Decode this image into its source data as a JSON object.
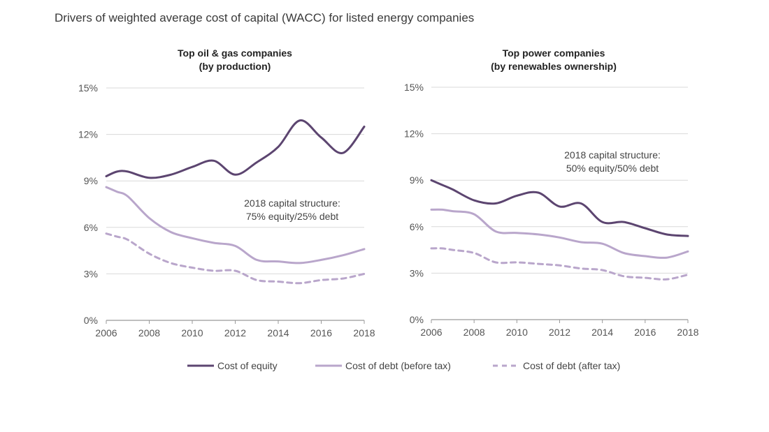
{
  "title": "Drivers of weighted average cost of capital (WACC) for listed energy companies",
  "legend": [
    "Cost of equity",
    "Cost of debt (before tax)",
    "Cost of debt (after tax)"
  ],
  "colors": {
    "equity": "#5c4570",
    "debt_before": "#b9a6cb",
    "debt_after": "#b9a6cb",
    "grid": "#d9d9d9",
    "axis": "#999999"
  },
  "chart_data": [
    {
      "type": "line",
      "title": [
        "Top oil & gas companies",
        "(by production)"
      ],
      "annotation": [
        "2018 capital structure:",
        "75% equity/25% debt"
      ],
      "x": [
        2006,
        2006.5,
        2007,
        2008,
        2009,
        2010,
        2011,
        2012,
        2013,
        2014,
        2015,
        2016,
        2017,
        2018
      ],
      "x_ticks": [
        "2006",
        "2008",
        "2010",
        "2012",
        "2014",
        "2016",
        "2018"
      ],
      "y_ticks": [
        "0%",
        "3%",
        "6%",
        "9%",
        "12%",
        "15%"
      ],
      "ylim": [
        0,
        15
      ],
      "series": [
        {
          "name": "Cost of equity",
          "values": [
            9.3,
            9.6,
            9.6,
            9.2,
            9.4,
            9.9,
            10.3,
            9.4,
            10.2,
            11.2,
            12.9,
            11.8,
            10.8,
            12.5
          ]
        },
        {
          "name": "Cost of debt (before tax)",
          "values": [
            8.6,
            8.3,
            8.0,
            6.6,
            5.7,
            5.3,
            5.0,
            4.8,
            3.9,
            3.8,
            3.7,
            3.9,
            4.2,
            4.6
          ]
        },
        {
          "name": "Cost of debt (after tax)",
          "values": [
            5.6,
            5.4,
            5.2,
            4.3,
            3.7,
            3.4,
            3.2,
            3.2,
            2.6,
            2.5,
            2.4,
            2.6,
            2.7,
            3.0
          ]
        }
      ]
    },
    {
      "type": "line",
      "title": [
        "Top power companies",
        "(by renewables ownership)"
      ],
      "annotation": [
        "2018 capital structure:",
        "50% equity/50% debt"
      ],
      "x": [
        2006,
        2006.5,
        2007,
        2008,
        2009,
        2010,
        2011,
        2012,
        2013,
        2014,
        2015,
        2016,
        2017,
        2018
      ],
      "x_ticks": [
        "2006",
        "2008",
        "2010",
        "2012",
        "2014",
        "2016",
        "2018"
      ],
      "y_ticks": [
        "0%",
        "3%",
        "6%",
        "9%",
        "12%",
        "15%"
      ],
      "ylim": [
        0,
        15
      ],
      "series": [
        {
          "name": "Cost of equity",
          "values": [
            9.0,
            8.7,
            8.4,
            7.7,
            7.5,
            8.0,
            8.2,
            7.3,
            7.5,
            6.3,
            6.3,
            5.9,
            5.5,
            5.4
          ]
        },
        {
          "name": "Cost of debt (before tax)",
          "values": [
            7.1,
            7.1,
            7.0,
            6.8,
            5.7,
            5.6,
            5.5,
            5.3,
            5.0,
            4.9,
            4.3,
            4.1,
            4.0,
            4.4
          ]
        },
        {
          "name": "Cost of debt (after tax)",
          "values": [
            4.6,
            4.6,
            4.5,
            4.3,
            3.7,
            3.7,
            3.6,
            3.5,
            3.3,
            3.2,
            2.8,
            2.7,
            2.6,
            2.9
          ]
        }
      ]
    }
  ]
}
